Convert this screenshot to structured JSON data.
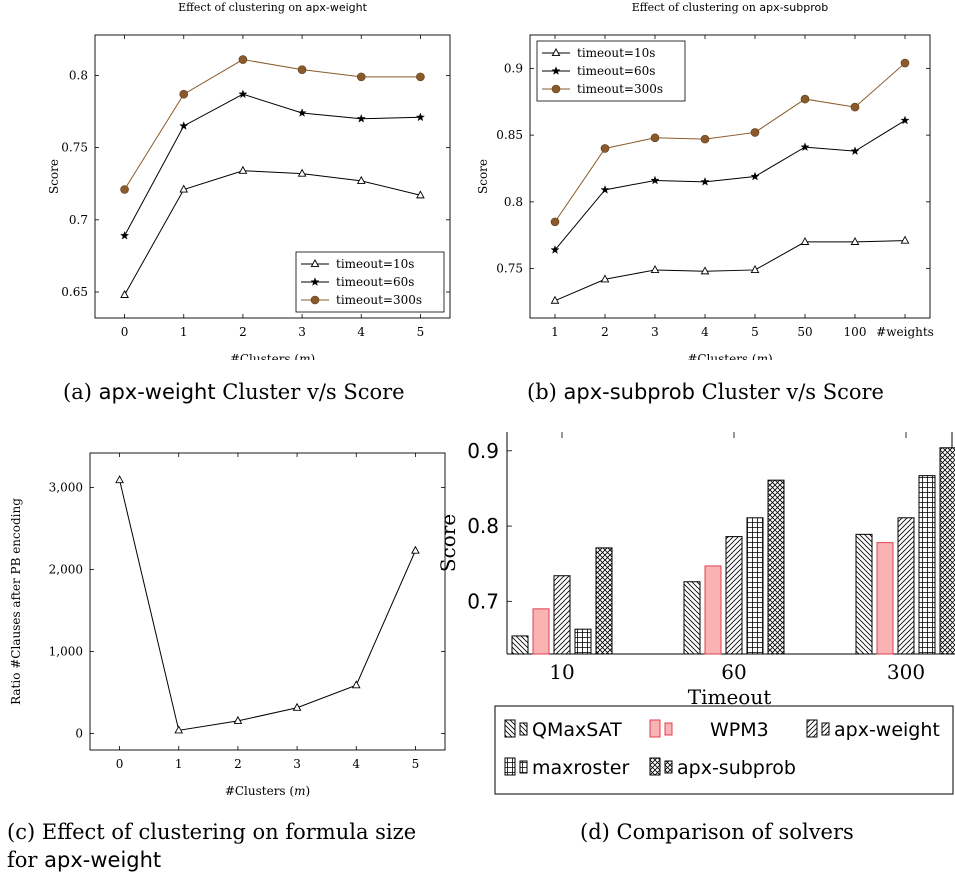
{
  "captions": {
    "a": {
      "prefix": "(a) ",
      "name": "apx-weight",
      "rest": " Cluster v/s Score"
    },
    "b": {
      "prefix": "(b) ",
      "name": "apx-subprob",
      "rest": " Cluster v/s Score"
    },
    "c": {
      "line1": "(c) Effect of clustering on formula size",
      "line2_prefix": "for ",
      "line2_name": "apx-weight"
    },
    "d": {
      "text": "(d) Comparison of solvers"
    }
  },
  "chart_data": [
    {
      "id": "a",
      "type": "line",
      "title_prefix": "Effect of clustering on ",
      "title_name": "apx-weight",
      "xlabel": "#Clusters (m)",
      "ylabel": "Score",
      "x": [
        0,
        1,
        2,
        3,
        4,
        5
      ],
      "xticks": [
        "0",
        "1",
        "2",
        "3",
        "4",
        "5"
      ],
      "xlim": [
        -0.5,
        5.5
      ],
      "ylim": [
        0.632,
        0.828
      ],
      "yticks": [
        0.65,
        0.7,
        0.75,
        0.8
      ],
      "ytick_labels": [
        "0.65",
        "0.7",
        "0.75",
        "0.8"
      ],
      "legend_position": "bottom-right",
      "series": [
        {
          "name": "timeout=10s",
          "marker": "triangle",
          "color": "#000000",
          "values": [
            0.648,
            0.721,
            0.734,
            0.732,
            0.727,
            0.717
          ]
        },
        {
          "name": "timeout=60s",
          "marker": "star",
          "color": "#000000",
          "values": [
            0.689,
            0.765,
            0.787,
            0.774,
            0.77,
            0.771
          ]
        },
        {
          "name": "timeout=300s",
          "marker": "circle",
          "color": "#8b5a2b",
          "values": [
            0.721,
            0.787,
            0.811,
            0.804,
            0.799,
            0.799
          ]
        }
      ]
    },
    {
      "id": "b",
      "type": "line",
      "title_prefix": "Effect of clustering on ",
      "title_name": "apx-subprob",
      "xlabel": "#Clusters (m)",
      "ylabel": "Score",
      "categories": [
        "1",
        "2",
        "3",
        "4",
        "5",
        "50",
        "100",
        "#weights"
      ],
      "ylim": [
        0.713,
        0.925
      ],
      "yticks": [
        0.75,
        0.8,
        0.85,
        0.9
      ],
      "ytick_labels": [
        "0.75",
        "0.8",
        "0.85",
        "0.9"
      ],
      "legend_position": "top-left",
      "series": [
        {
          "name": "timeout=10s",
          "marker": "triangle",
          "color": "#000000",
          "values": [
            0.726,
            0.742,
            0.749,
            0.748,
            0.749,
            0.77,
            0.77,
            0.771
          ]
        },
        {
          "name": "timeout=60s",
          "marker": "star",
          "color": "#000000",
          "values": [
            0.764,
            0.809,
            0.816,
            0.815,
            0.819,
            0.841,
            0.838,
            0.861
          ]
        },
        {
          "name": "timeout=300s",
          "marker": "circle",
          "color": "#8b5a2b",
          "values": [
            0.785,
            0.84,
            0.848,
            0.847,
            0.852,
            0.877,
            0.871,
            0.904
          ]
        }
      ]
    },
    {
      "id": "c",
      "type": "line",
      "xlabel": "#Clusters (m)",
      "ylabel": "Ratio #Clauses after PB encoding",
      "x": [
        0,
        1,
        2,
        3,
        4,
        5
      ],
      "xticks": [
        "0",
        "1",
        "2",
        "3",
        "4",
        "5"
      ],
      "xlim": [
        -0.5,
        5.5
      ],
      "ylim": [
        -200,
        3420
      ],
      "yticks": [
        0,
        1000,
        2000,
        3000
      ],
      "ytick_labels": [
        "0",
        "1,000",
        "2,000",
        "3,000"
      ],
      "series": [
        {
          "marker": "triangle",
          "color": "#000000",
          "values": [
            3090,
            40,
            155,
            315,
            590,
            2230
          ]
        }
      ]
    },
    {
      "id": "d",
      "type": "bar",
      "xlabel": "Timeout",
      "ylabel": "Score",
      "categories": [
        "10",
        "60",
        "300"
      ],
      "ylim": [
        0.63,
        0.925
      ],
      "yticks": [
        0.7,
        0.8,
        0.9
      ],
      "ytick_labels": [
        "0.7",
        "0.8",
        "0.9"
      ],
      "legend_position": "below",
      "series": [
        {
          "name": "QMaxSAT",
          "pattern": "diag-back",
          "color": "#000000",
          "fill": "#ffffff",
          "values": [
            0.654,
            0.726,
            0.789
          ]
        },
        {
          "name": "WPM3",
          "pattern": "solid",
          "color": "#e04050",
          "fill": "#f9b3b3",
          "values": [
            0.69,
            0.747,
            0.778
          ]
        },
        {
          "name": "apx-weight",
          "pattern": "diag-fwd",
          "color": "#000000",
          "fill": "#ffffff",
          "values": [
            0.734,
            0.786,
            0.811
          ]
        },
        {
          "name": "maxroster",
          "pattern": "grid",
          "color": "#000000",
          "fill": "#ffffff",
          "values": [
            0.663,
            0.811,
            0.867
          ]
        },
        {
          "name": "apx-subprob",
          "pattern": "crosshatch",
          "color": "#000000",
          "fill": "#ffffff",
          "values": [
            0.771,
            0.861,
            0.904
          ]
        }
      ]
    }
  ]
}
